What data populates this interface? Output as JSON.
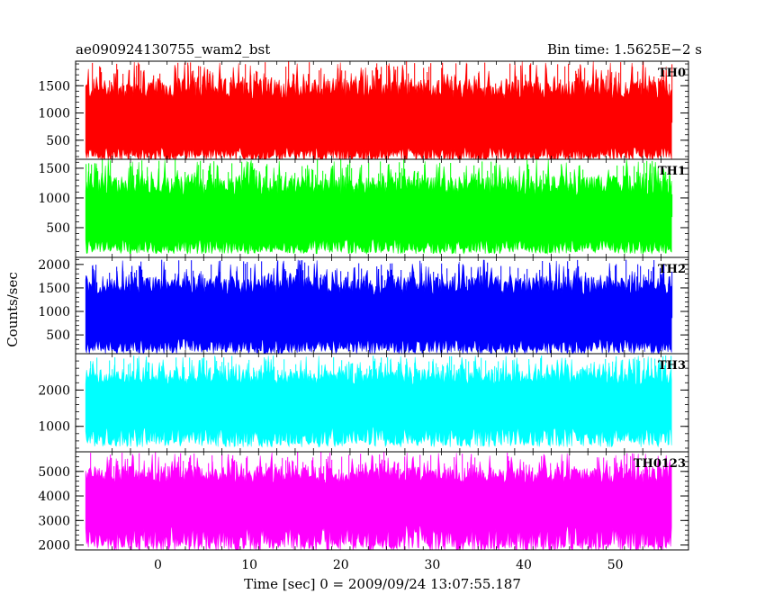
{
  "chart_data": {
    "type": "line",
    "title": "ae090924130755_wam2_bst",
    "subtitle": "Bin time: 1.5625E−2 s",
    "xlabel": "Time [sec] 0 = 2009/09/24 13:07:55.187",
    "ylabel": "Counts/sec",
    "xlim": [
      -9,
      58
    ],
    "x_range": [
      -7.9,
      56.1
    ],
    "x_ticks": [
      0,
      10,
      20,
      30,
      40,
      50
    ],
    "grid": false,
    "panels": [
      {
        "name": "TH0",
        "color": "#ff0000",
        "ylim": [
          150,
          1950
        ],
        "y_ticks": [
          500,
          1000,
          1500
        ],
        "baseline": 820,
        "low": [
          130,
          370
        ],
        "high": [
          1250,
          1950
        ]
      },
      {
        "name": "TH1",
        "color": "#00ff00",
        "ylim": [
          0,
          1650
        ],
        "y_ticks": [
          500,
          1000,
          1500
        ],
        "baseline": 680,
        "low": [
          60,
          320
        ],
        "high": [
          1050,
          1650
        ]
      },
      {
        "name": "TH2",
        "color": "#0000ff",
        "ylim": [
          100,
          2150
        ],
        "y_ticks": [
          500,
          1000,
          1500,
          2000
        ],
        "baseline": 860,
        "low": [
          100,
          420
        ],
        "high": [
          1350,
          2100
        ]
      },
      {
        "name": "TH3",
        "color": "#00ffff",
        "ylim": [
          300,
          3000
        ],
        "y_ticks": [
          1000,
          2000
        ],
        "baseline": 1550,
        "low": [
          430,
          1000
        ],
        "high": [
          2150,
          2950
        ]
      },
      {
        "name": "TH0123",
        "color": "#ff00ff",
        "ylim": [
          1800,
          5800
        ],
        "y_ticks": [
          2000,
          3000,
          4000,
          5000
        ],
        "baseline": 3550,
        "low": [
          1750,
          2800
        ],
        "high": [
          4500,
          5800
        ]
      }
    ]
  }
}
